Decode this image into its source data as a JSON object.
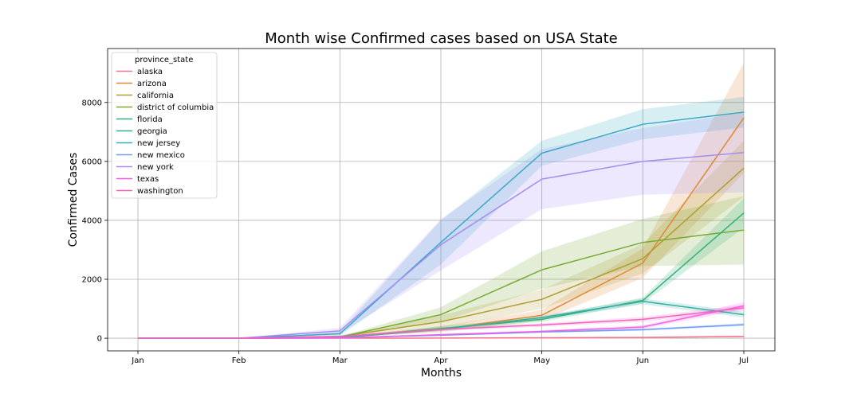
{
  "chart_data": {
    "type": "line",
    "title": "Month wise Confirmed cases based on USA State",
    "xlabel": "Months",
    "ylabel": "Confirmed Cases",
    "categories": [
      "Jan",
      "Feb",
      "Mar",
      "Apr",
      "May",
      "Jun",
      "Jul"
    ],
    "yticks": [
      0,
      2000,
      4000,
      6000,
      8000
    ],
    "ylim": [
      -430,
      9830
    ],
    "grid": true,
    "legend": {
      "title": "province_state",
      "placement": "top-left"
    },
    "series": [
      {
        "name": "alaska",
        "color": "#f77189",
        "values": [
          0,
          0,
          1,
          5,
          15,
          25,
          60
        ],
        "lower": [
          0,
          0,
          0,
          0,
          5,
          10,
          30
        ],
        "upper": [
          0,
          0,
          2,
          10,
          25,
          40,
          90
        ]
      },
      {
        "name": "arizona",
        "color": "#dc8932",
        "values": [
          0,
          0,
          20,
          300,
          780,
          2550,
          7480
        ],
        "lower": [
          0,
          0,
          10,
          200,
          600,
          2050,
          5600
        ],
        "upper": [
          0,
          0,
          30,
          400,
          960,
          3050,
          9350
        ]
      },
      {
        "name": "california",
        "color": "#ae9d31",
        "values": [
          0,
          5,
          60,
          560,
          1320,
          2700,
          5770
        ],
        "lower": [
          0,
          0,
          30,
          350,
          1000,
          2200,
          4800
        ],
        "upper": [
          0,
          10,
          90,
          770,
          1650,
          3200,
          6700
        ]
      },
      {
        "name": "district of columbia",
        "color": "#77ab31",
        "values": [
          0,
          0,
          40,
          800,
          2320,
          3250,
          3670
        ],
        "lower": [
          0,
          0,
          20,
          550,
          1680,
          2450,
          2500
        ],
        "upper": [
          0,
          0,
          60,
          1050,
          2950,
          4050,
          4820
        ]
      },
      {
        "name": "florida",
        "color": "#33b07a",
        "values": [
          0,
          0,
          30,
          330,
          640,
          1280,
          4250
        ],
        "lower": [
          0,
          0,
          15,
          250,
          560,
          1180,
          3750
        ],
        "upper": [
          0,
          0,
          45,
          410,
          720,
          1380,
          4750
        ]
      },
      {
        "name": "georgia",
        "color": "#36ada4",
        "values": [
          0,
          0,
          20,
          300,
          700,
          1250,
          800
        ],
        "lower": [
          0,
          0,
          10,
          250,
          640,
          1150,
          700
        ],
        "upper": [
          0,
          0,
          30,
          350,
          760,
          1350,
          900
        ]
      },
      {
        "name": "new jersey",
        "color": "#38a9c5",
        "values": [
          0,
          0,
          150,
          3250,
          6280,
          7260,
          7670
        ],
        "lower": [
          0,
          0,
          80,
          2500,
          5850,
          6750,
          7150
        ],
        "upper": [
          0,
          0,
          220,
          4000,
          6700,
          7770,
          8190
        ]
      },
      {
        "name": "new mexico",
        "color": "#6e9bf4",
        "values": [
          0,
          0,
          10,
          100,
          210,
          290,
          460
        ],
        "lower": [
          0,
          0,
          5,
          80,
          180,
          250,
          410
        ],
        "upper": [
          0,
          0,
          15,
          120,
          240,
          330,
          510
        ]
      },
      {
        "name": "new york",
        "color": "#a48cf4",
        "values": [
          0,
          0,
          250,
          3170,
          5400,
          6000,
          6300
        ],
        "lower": [
          0,
          0,
          150,
          2300,
          4380,
          4870,
          4950
        ],
        "upper": [
          0,
          0,
          350,
          4040,
          6420,
          7130,
          7650
        ]
      },
      {
        "name": "texas",
        "color": "#f45deb",
        "values": [
          0,
          0,
          10,
          120,
          230,
          380,
          1100
        ],
        "lower": [
          0,
          0,
          5,
          90,
          190,
          320,
          980
        ],
        "upper": [
          0,
          0,
          15,
          150,
          270,
          440,
          1220
        ]
      },
      {
        "name": "washington",
        "color": "#f661bd",
        "values": [
          0,
          0,
          60,
          300,
          450,
          640,
          1030
        ],
        "lower": [
          0,
          0,
          40,
          240,
          390,
          560,
          930
        ],
        "upper": [
          0,
          0,
          80,
          360,
          510,
          720,
          1130
        ]
      }
    ]
  }
}
